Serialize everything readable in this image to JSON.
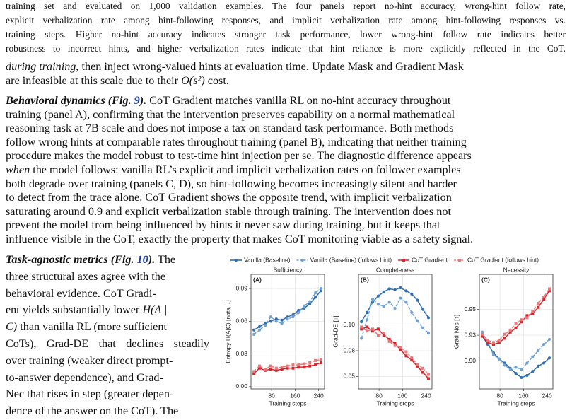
{
  "caption_lines": [
    "training set and evaluated on 1,000 validation examples. The four panels report no-hint accuracy, wrong-hint follow rate,",
    "explicit verbalization rate among hint-following responses, and implicit verbalization rate among hint-following responses vs.",
    "training steps. Higher no-hint accuracy indicates stronger task performance, lower wrong-hint follow rate indicates better",
    "robustness to incorrect hints, and higher verbalization rates indicate that hint reliance is more explicitly reflected in the CoT."
  ],
  "paragraphs": [
    [
      [
        {
          "text": "during training",
          "style": "i"
        },
        ", then inject wrong-valued hints at evaluation time. Update Mask and Gradient Mask"
      ],
      [
        "are infeasible at this scale due to their ",
        {
          "text": "O(s²)",
          "style": "i"
        },
        " cost."
      ]
    ],
    [
      [
        {
          "text": "Behavioral dynamics (Fig. ",
          "style": "bi"
        },
        {
          "text": "9",
          "style": "bil"
        },
        {
          "text": ").",
          "style": "bi"
        },
        " CoT Gradient matches vanilla RL on no-hint accuracy throughout"
      ],
      [
        "training (panel A), confirming that the intervention preserves capability on a normal mathematical"
      ],
      [
        "reasoning task at 7B scale and does not impose a tax on standard task performance. Both methods"
      ],
      [
        "follow wrong hints at comparable rates throughout training (panel B), indicating that neither training"
      ],
      [
        "procedure makes the model robust to test-time hint injection per se. The diagnostic difference appears"
      ],
      [
        {
          "text": "when",
          "style": "i"
        },
        " the model follows: vanilla RL’s explicit and implicit verbalization rates on follower examples"
      ],
      [
        "both degrade over training (panels C, D), so hint-following becomes increasingly silent and harder"
      ],
      [
        "to detect from the trace alone. CoT Gradient shows the opposite trend, with implicit verbalization"
      ],
      [
        "saturating around 0.9 and explicit verbalization stable through training. The intervention does not"
      ],
      [
        "prevent the model from being influenced by hints it never saw during training, but it keeps that"
      ],
      [
        "influence visible in the CoT, exactly the property that makes CoT monitoring viable as a safety signal."
      ]
    ],
    [
      [
        {
          "text": "Task-agnostic metrics (Fig. ",
          "style": "bi"
        },
        {
          "text": "10",
          "style": "bil"
        },
        {
          "text": ").",
          "style": "bi"
        },
        " The"
      ],
      [
        "three structural axes agree with the"
      ],
      [
        "behavioral evidence.  CoT Gradi-"
      ],
      [
        "ent yields substantially lower ",
        {
          "text": "H(A |",
          "style": "i"
        }
      ],
      [
        {
          "text": "C)",
          "style": "i"
        },
        " than vanilla RL (more sufficient"
      ],
      [
        "CoTs), Grad-DE that declines steadily"
      ],
      [
        "over training (weaker direct prompt-"
      ],
      [
        "to-answer dependence), and Grad-"
      ],
      [
        "Nec that rises in step (greater depen-"
      ],
      [
        "dence of the answer on the CoT). The"
      ]
    ]
  ],
  "figure": {
    "series": [
      {
        "name": "Vanilla (Baseline)",
        "color": "#2f6fae",
        "dash": false,
        "marker": "circle"
      },
      {
        "name": "Vanilla (Baseline) (follows hint)",
        "color": "#6fa3d4",
        "dash": true,
        "marker": "circle"
      },
      {
        "name": "CoT Gradient",
        "color": "#d7262b",
        "dash": false,
        "marker": "square"
      },
      {
        "name": "CoT Gradient (follows hint)",
        "color": "#e8777a",
        "dash": true,
        "marker": "square"
      }
    ],
    "x": [
      20,
      39,
      58,
      77,
      96,
      115,
      134,
      153,
      172,
      191,
      210,
      229,
      248
    ],
    "xlim": [
      10,
      260
    ],
    "xticks": [
      80,
      160,
      240
    ],
    "grid": true,
    "panels": [
      {
        "title": "Sufficiency",
        "letter": "(A)",
        "ylabel": "Entropy H(A|C) [nats, ↓]",
        "xlabel": "Training steps",
        "ylim": [
          -0.002,
          0.103
        ],
        "yticks": [
          {
            "value": 0,
            "label": "0.00"
          },
          0.03,
          0.06,
          0.09
        ],
        "series": [
          {
            "values": [
              0.052,
              0.055,
              0.058,
              0.06,
              0.062,
              0.061,
              0.064,
              0.066,
              0.07,
              0.072,
              0.076,
              0.082,
              0.088
            ]
          },
          {
            "values": [
              0.048,
              0.052,
              0.056,
              0.064,
              0.06,
              0.058,
              0.062,
              0.064,
              0.068,
              0.074,
              0.078,
              0.086,
              0.09
            ]
          },
          {
            "values": [
              0.012,
              0.017,
              0.015,
              0.016,
              0.015,
              0.016,
              0.017,
              0.017,
              0.018,
              0.018,
              0.019,
              0.02,
              0.022
            ]
          },
          {
            "values": [
              0.014,
              0.019,
              0.016,
              0.019,
              0.017,
              0.018,
              0.019,
              0.02,
              0.02,
              0.021,
              0.022,
              0.024,
              0.025
            ]
          }
        ]
      },
      {
        "title": "Completeness",
        "letter": "(B)",
        "ylabel": "Grad-DE [↓]",
        "xlabel": "Training steps",
        "ylim": [
          0.038,
          0.149
        ],
        "yticks": [
          0.05,
          {
            "value": 0.075,
            "label": "0.08"
          },
          {
            "value": 0.1,
            "label": "0.10"
          }
        ],
        "series": [
          {
            "values": [
              0.103,
              0.112,
              0.122,
              0.128,
              0.132,
              0.135,
              0.134,
              0.136,
              0.133,
              0.13,
              0.124,
              0.115,
              0.107
            ]
          },
          {
            "values": [
              0.087,
              0.105,
              0.125,
              0.12,
              0.118,
              0.122,
              0.116,
              0.126,
              0.122,
              0.112,
              0.104,
              0.097,
              0.092
            ]
          },
          {
            "values": [
              0.096,
              0.098,
              0.094,
              0.096,
              0.09,
              0.086,
              0.082,
              0.076,
              0.07,
              0.066,
              0.06,
              0.054,
              0.048
            ]
          },
          {
            "values": [
              0.098,
              0.094,
              0.096,
              0.09,
              0.092,
              0.084,
              0.08,
              0.078,
              0.074,
              0.068,
              0.062,
              0.058,
              0.052
            ]
          }
        ]
      },
      {
        "title": "Necessity",
        "letter": "(C)",
        "ylabel": "Grad-Nec [↑]",
        "xlabel": "Training steps",
        "ylim": [
          0.873,
          0.984
        ],
        "yticks": [
          {
            "value": 0.9,
            "label": "0.90"
          },
          {
            "value": 0.925,
            "label": "0.93"
          },
          0.95
        ],
        "series": [
          {
            "values": [
              0.924,
              0.916,
              0.908,
              0.902,
              0.898,
              0.893,
              0.888,
              0.884,
              0.886,
              0.89,
              0.895,
              0.898,
              0.903
            ]
          },
          {
            "values": [
              0.928,
              0.918,
              0.906,
              0.902,
              0.896,
              0.892,
              0.894,
              0.892,
              0.898,
              0.904,
              0.91,
              0.916,
              0.921
            ]
          },
          {
            "values": [
              0.924,
              0.918,
              0.916,
              0.918,
              0.922,
              0.928,
              0.932,
              0.938,
              0.944,
              0.946,
              0.952,
              0.96,
              0.968
            ]
          },
          {
            "values": [
              0.926,
              0.92,
              0.918,
              0.92,
              0.926,
              0.93,
              0.936,
              0.94,
              0.942,
              0.948,
              0.956,
              0.962,
              0.97
            ]
          }
        ]
      }
    ]
  }
}
